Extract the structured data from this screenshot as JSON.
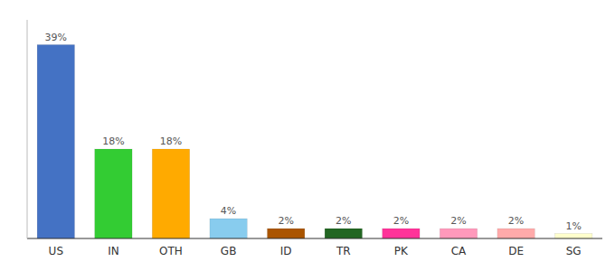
{
  "chart_data": {
    "type": "bar",
    "categories": [
      "US",
      "IN",
      "OTH",
      "GB",
      "ID",
      "TR",
      "PK",
      "CA",
      "DE",
      "SG"
    ],
    "values": [
      39,
      18,
      18,
      4,
      2,
      2,
      2,
      2,
      2,
      1
    ],
    "value_labels": [
      "39%",
      "18%",
      "18%",
      "4%",
      "2%",
      "2%",
      "2%",
      "2%",
      "2%",
      "1%"
    ],
    "colors": [
      "#4472c4",
      "#33cc33",
      "#ffaa00",
      "#88ccee",
      "#aa5500",
      "#226622",
      "#ff3399",
      "#ff99bb",
      "#ffaaaa",
      "#ffffcc"
    ],
    "ylim": [
      0,
      44
    ],
    "yticks": [],
    "grid": false,
    "data_labels": true,
    "tick_labels": "x"
  }
}
